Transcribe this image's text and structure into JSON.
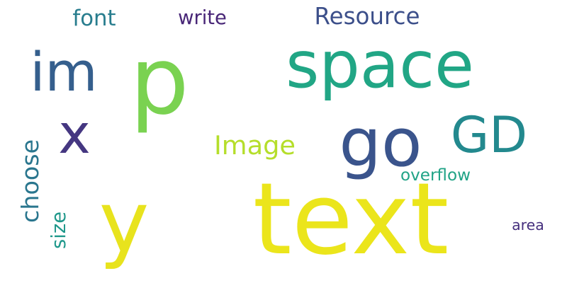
{
  "words": [
    {
      "text": "text",
      "color": "#ebe51b",
      "vertical": false
    },
    {
      "text": "p",
      "color": "#7ad251",
      "vertical": false
    },
    {
      "text": "space",
      "color": "#21a685",
      "vertical": false
    },
    {
      "text": "y",
      "color": "#e8e31d",
      "vertical": false
    },
    {
      "text": "go",
      "color": "#3a548c",
      "vertical": false
    },
    {
      "text": "im",
      "color": "#355f8d",
      "vertical": false
    },
    {
      "text": "x",
      "color": "#453781",
      "vertical": false
    },
    {
      "text": "GD",
      "color": "#23898e",
      "vertical": false
    },
    {
      "text": "Resource",
      "color": "#3c4f8a",
      "vertical": false
    },
    {
      "text": "write",
      "color": "#482677",
      "vertical": false
    },
    {
      "text": "font",
      "color": "#287d8e",
      "vertical": false
    },
    {
      "text": "Image",
      "color": "#b5de2b",
      "vertical": false
    },
    {
      "text": "overflow",
      "color": "#20a386",
      "vertical": false
    },
    {
      "text": "area",
      "color": "#46307e",
      "vertical": false
    },
    {
      "text": "choose",
      "color": "#2a768e",
      "vertical": true
    },
    {
      "text": "size",
      "color": "#1f988b",
      "vertical": true
    }
  ]
}
